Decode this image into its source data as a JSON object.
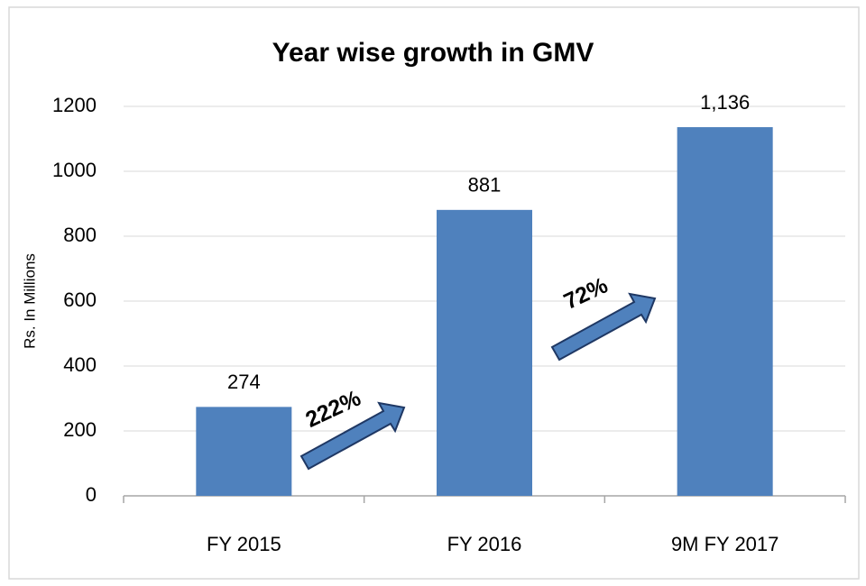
{
  "chart_data": {
    "type": "bar",
    "title": "Year wise growth in GMV",
    "y_label": "Rs. In Millions",
    "categories": [
      "FY 2015",
      "FY 2016",
      "9M FY 2017"
    ],
    "values": [
      274,
      881,
      1136
    ],
    "value_labels": [
      "274",
      "881",
      "1,136"
    ],
    "color": "#4f81bd",
    "ylim": [
      0,
      1200
    ],
    "yticks": [
      0,
      200,
      400,
      600,
      800,
      1000,
      1200
    ],
    "grid": true,
    "annotations": [
      "222%",
      "72%"
    ]
  }
}
